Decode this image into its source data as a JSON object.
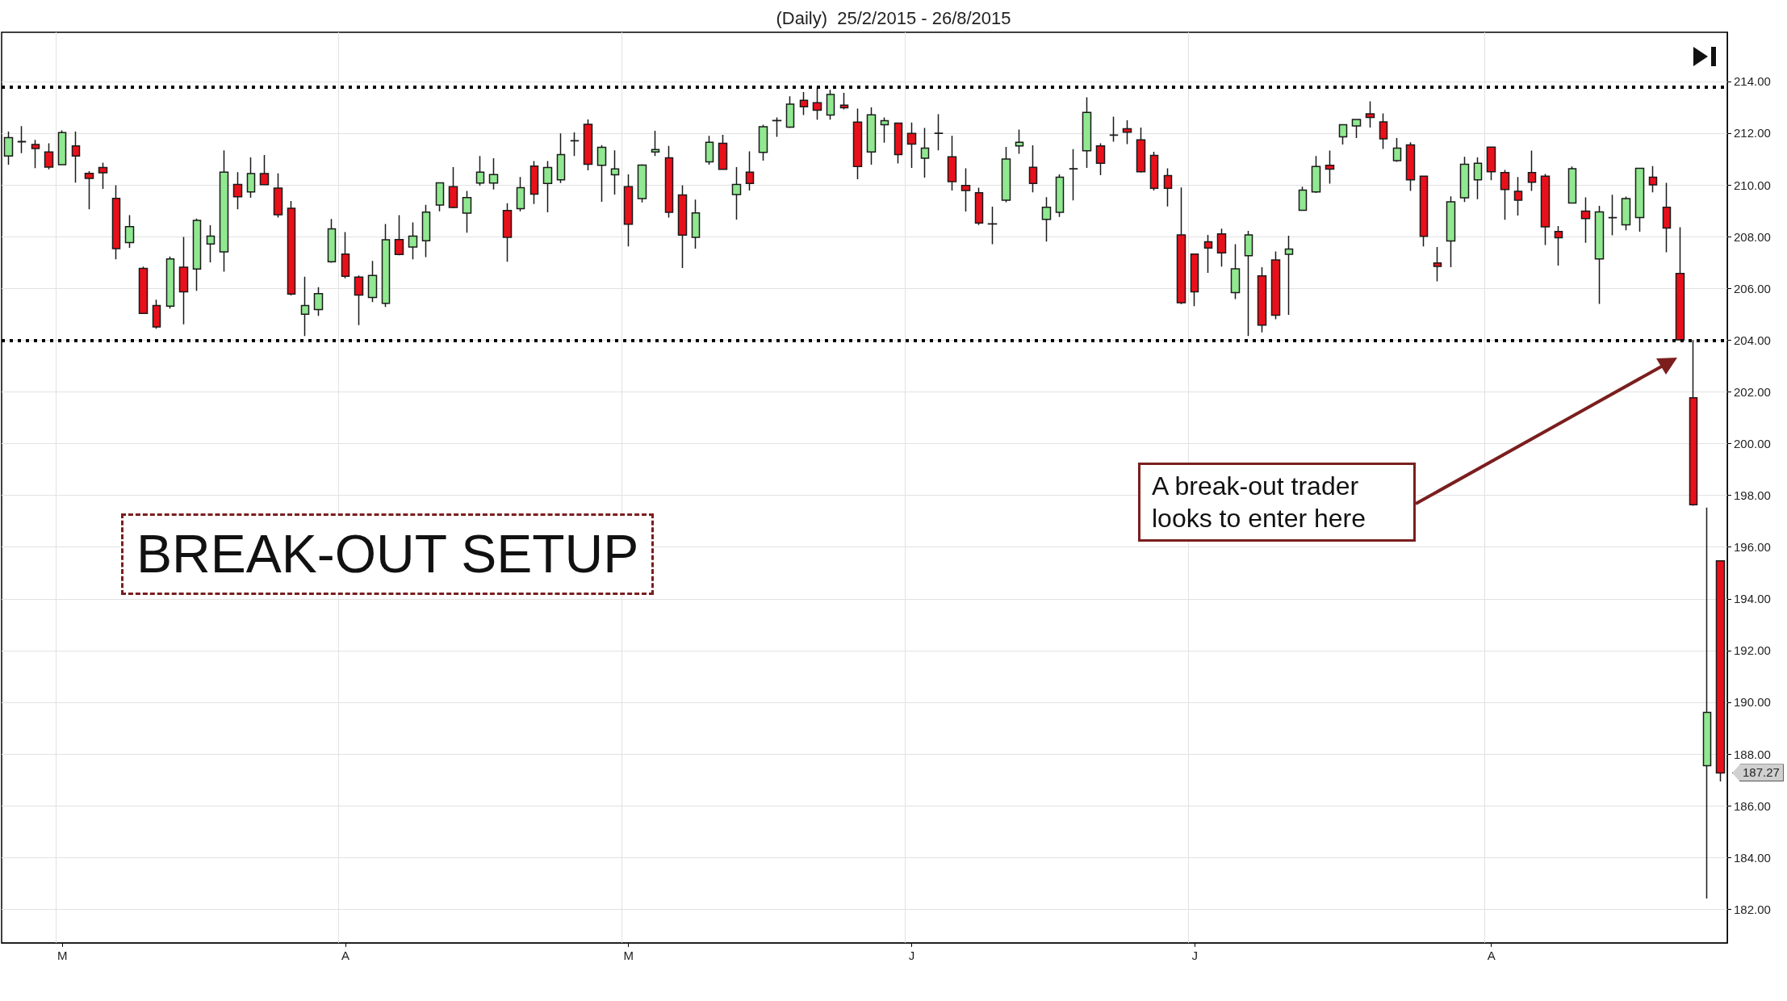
{
  "chart_data": {
    "type": "candlestick",
    "title": "(Daily)  25/2/2015 - 26/8/2015",
    "categories": [
      null,
      null,
      null,
      null,
      "M",
      null,
      null,
      null,
      null,
      null,
      null,
      null,
      null,
      null,
      null,
      null,
      null,
      null,
      null,
      null,
      null,
      null,
      null,
      null,
      null,
      "A",
      null,
      null,
      null,
      null,
      null,
      null,
      null,
      null,
      null,
      null,
      null,
      null,
      null,
      null,
      null,
      null,
      null,
      null,
      null,
      null,
      "M",
      null,
      null,
      null,
      null,
      null,
      null,
      null,
      null,
      null,
      null,
      null,
      null,
      null,
      null,
      null,
      null,
      null,
      null,
      null,
      null,
      "J",
      null,
      null,
      null,
      null,
      null,
      null,
      null,
      null,
      null,
      null,
      null,
      null,
      null,
      null,
      null,
      null,
      null,
      null,
      null,
      null,
      "J",
      null,
      null,
      null,
      null,
      null,
      null,
      null,
      null,
      null,
      null,
      null,
      null,
      null,
      null,
      null,
      null,
      null,
      null,
      null,
      null,
      null,
      "A",
      null,
      null,
      null,
      null,
      null,
      null,
      null,
      null,
      null,
      null,
      null,
      null,
      null,
      null,
      null,
      null,
      null
    ],
    "ohlc": [
      [
        211.12,
        212.06,
        210.78,
        211.83
      ],
      [
        211.66,
        212.27,
        211.23,
        211.68
      ],
      [
        211.56,
        211.74,
        210.65,
        211.41
      ],
      [
        211.27,
        211.61,
        210.6,
        210.69
      ],
      [
        210.78,
        212.11,
        210.78,
        212.02
      ],
      [
        211.51,
        212.06,
        210.09,
        211.12
      ],
      [
        210.45,
        210.53,
        209.06,
        210.25
      ],
      [
        210.67,
        210.86,
        209.85,
        210.47
      ],
      [
        209.48,
        209.99,
        207.12,
        207.54
      ],
      [
        207.77,
        208.83,
        207.57,
        208.39
      ],
      [
        206.77,
        206.84,
        205.03,
        205.03
      ],
      [
        205.34,
        205.56,
        204.44,
        204.51
      ],
      [
        205.31,
        207.23,
        205.22,
        207.14
      ],
      [
        206.82,
        207.99,
        204.61,
        205.87
      ],
      [
        206.75,
        208.7,
        205.91,
        208.63
      ],
      [
        207.72,
        208.44,
        207.01,
        208.02
      ],
      [
        207.41,
        211.34,
        206.65,
        210.49
      ],
      [
        210.02,
        210.49,
        209.06,
        209.54
      ],
      [
        209.73,
        211.06,
        209.5,
        210.44
      ],
      [
        210.44,
        211.16,
        210.01,
        210.01
      ],
      [
        209.88,
        210.45,
        208.74,
        208.85
      ],
      [
        209.1,
        209.38,
        205.73,
        205.78
      ],
      [
        205,
        206.45,
        204.16,
        205.34
      ],
      [
        205.18,
        206.05,
        204.94,
        205.8
      ],
      [
        207.03,
        208.68,
        206.99,
        208.3
      ],
      [
        207.33,
        208.18,
        206.39,
        206.47
      ],
      [
        206.44,
        206.5,
        204.58,
        205.74
      ],
      [
        205.65,
        207.06,
        205.47,
        206.5
      ],
      [
        205.42,
        208.49,
        205.28,
        207.88
      ],
      [
        207.89,
        208.83,
        207.28,
        207.31
      ],
      [
        207.6,
        208.55,
        207.12,
        208.02
      ],
      [
        207.84,
        209.23,
        207.21,
        208.95
      ],
      [
        209.22,
        210.08,
        208.98,
        210.08
      ],
      [
        209.93,
        210.69,
        209.1,
        209.13
      ],
      [
        208.91,
        209.77,
        208.15,
        209.51
      ],
      [
        210.07,
        211.12,
        209.97,
        210.49
      ],
      [
        210.07,
        211.03,
        209.82,
        210.4
      ],
      [
        209.01,
        209.29,
        207.03,
        207.97
      ],
      [
        209.08,
        210.31,
        208.98,
        209.89
      ],
      [
        210.73,
        210.92,
        209.26,
        209.64
      ],
      [
        210.06,
        210.92,
        208.94,
        210.67
      ],
      [
        210.2,
        211.99,
        210.07,
        211.17
      ],
      [
        211.7,
        212.03,
        211.12,
        211.71
      ],
      [
        212.34,
        212.53,
        210.56,
        210.8
      ],
      [
        210.76,
        211.54,
        209.35,
        211.45
      ],
      [
        210.39,
        211.34,
        209.63,
        210.62
      ],
      [
        209.93,
        210.41,
        207.62,
        208.48
      ],
      [
        209.47,
        210.8,
        209.32,
        210.77
      ],
      [
        211.27,
        212.09,
        211.12,
        211.37
      ],
      [
        211.05,
        211.51,
        208.74,
        208.94
      ],
      [
        209.61,
        209.99,
        206.79,
        208.06
      ],
      [
        207.97,
        209.43,
        207.54,
        208.92
      ],
      [
        210.89,
        211.9,
        210.78,
        211.65
      ],
      [
        211.61,
        211.94,
        210.58,
        210.6
      ],
      [
        209.63,
        210.69,
        208.66,
        210.02
      ],
      [
        210.49,
        211.3,
        209.78,
        210.06
      ],
      [
        211.26,
        212.33,
        210.94,
        212.25
      ],
      [
        212.48,
        212.61,
        211.86,
        212.49
      ],
      [
        212.23,
        213.43,
        212.2,
        213.12
      ],
      [
        213.27,
        213.59,
        212.7,
        213.02
      ],
      [
        213.18,
        213.76,
        212.52,
        212.89
      ],
      [
        212.7,
        213.68,
        212.52,
        213.5
      ],
      [
        213.08,
        213.56,
        212.92,
        212.98
      ],
      [
        212.43,
        212.95,
        210.22,
        210.71
      ],
      [
        211.27,
        213,
        210.78,
        212.71
      ],
      [
        212.33,
        212.61,
        211.63,
        212.48
      ],
      [
        212.39,
        212.39,
        210.83,
        211.17
      ],
      [
        211.99,
        212.41,
        210.66,
        211.58
      ],
      [
        211.03,
        212.2,
        210.28,
        211.42
      ],
      [
        212,
        212.73,
        211.34,
        211.99
      ],
      [
        211.09,
        211.9,
        209.78,
        210.13
      ],
      [
        209.98,
        210.64,
        208.97,
        209.78
      ],
      [
        209.7,
        209.89,
        208.45,
        208.53
      ],
      [
        208.5,
        209.16,
        207.71,
        208.49
      ],
      [
        209.41,
        211.47,
        209.33,
        211
      ],
      [
        211.51,
        212.14,
        211.2,
        211.65
      ],
      [
        210.68,
        211.53,
        209.71,
        210.06
      ],
      [
        208.67,
        209.53,
        207.81,
        209.14
      ],
      [
        208.94,
        210.41,
        208.76,
        210.3
      ],
      [
        210.63,
        211.38,
        209.4,
        210.62
      ],
      [
        211.32,
        213.39,
        210.66,
        212.8
      ],
      [
        211.51,
        211.61,
        210.38,
        210.84
      ],
      [
        211.93,
        212.64,
        211.67,
        211.92
      ],
      [
        212.17,
        212.5,
        211.58,
        212.04
      ],
      [
        211.74,
        212.22,
        210.48,
        210.51
      ],
      [
        211.14,
        211.28,
        209.78,
        209.87
      ],
      [
        210.36,
        210.64,
        209.17,
        209.87
      ],
      [
        208.07,
        209.9,
        205.39,
        205.45
      ],
      [
        207.33,
        207.33,
        205.31,
        205.87
      ],
      [
        207.8,
        208.07,
        206.6,
        207.56
      ],
      [
        208.11,
        208.31,
        206.84,
        207.37
      ],
      [
        205.84,
        207.71,
        205.59,
        206.76
      ],
      [
        207.26,
        208.22,
        204.16,
        208.07
      ],
      [
        206.48,
        206.82,
        204.3,
        204.58
      ],
      [
        207.1,
        207.43,
        204.81,
        204.96
      ],
      [
        207.32,
        208.04,
        204.98,
        207.52
      ],
      [
        209.02,
        209.93,
        209,
        209.8
      ],
      [
        209.73,
        211.12,
        209.69,
        210.71
      ],
      [
        210.76,
        211.33,
        210.05,
        210.61
      ],
      [
        211.86,
        212.33,
        211.56,
        212.33
      ],
      [
        212.28,
        212.53,
        211.81,
        212.53
      ],
      [
        212.75,
        213.23,
        212.22,
        212.61
      ],
      [
        212.44,
        212.76,
        211.39,
        211.78
      ],
      [
        210.94,
        211.81,
        210.89,
        211.42
      ],
      [
        211.55,
        211.65,
        209.77,
        210.2
      ],
      [
        210.34,
        210.34,
        207.62,
        208.01
      ],
      [
        206.98,
        207.6,
        206.27,
        206.85
      ],
      [
        207.83,
        209.56,
        206.82,
        209.35
      ],
      [
        209.5,
        211.09,
        209.34,
        210.8
      ],
      [
        210.2,
        211.06,
        209.45,
        210.84
      ],
      [
        211.46,
        211.46,
        210.18,
        210.51
      ],
      [
        210.48,
        210.58,
        208.65,
        209.82
      ],
      [
        209.75,
        210.31,
        208.82,
        209.41
      ],
      [
        210.48,
        211.33,
        209.77,
        210.1
      ],
      [
        210.34,
        210.42,
        207.68,
        208.38
      ],
      [
        208.2,
        208.41,
        206.88,
        207.96
      ],
      [
        209.3,
        210.71,
        209.3,
        210.63
      ],
      [
        208.99,
        209.52,
        207.76,
        208.7
      ],
      [
        207.14,
        209.19,
        205.4,
        208.96
      ],
      [
        208.74,
        209.62,
        208.05,
        208.73
      ],
      [
        208.46,
        209.55,
        208.25,
        209.47
      ],
      [
        208.74,
        210.64,
        208.19,
        210.64
      ],
      [
        210.3,
        210.73,
        209.71,
        210
      ],
      [
        209.14,
        210.08,
        207.4,
        208.33
      ],
      [
        206.58,
        208.36,
        203.98,
        204.01
      ],
      [
        201.77,
        204,
        197.6,
        197.64
      ],
      [
        187.55,
        197.53,
        182.42,
        189.61
      ],
      [
        195.47,
        195.47,
        186.94,
        187.27
      ]
    ],
    "ylim": [
      180.7,
      215.9
    ],
    "yticks": [
      {
        "value": 182,
        "label": "182.00"
      },
      {
        "value": 184,
        "label": "184.00"
      },
      {
        "value": 186,
        "label": "186.00"
      },
      {
        "value": 188,
        "label": "188.00"
      },
      {
        "value": 190,
        "label": "190.00"
      },
      {
        "value": 192,
        "label": "192.00"
      },
      {
        "value": 194,
        "label": "194.00"
      },
      {
        "value": 196,
        "label": "196.00"
      },
      {
        "value": 198,
        "label": "198.00"
      },
      {
        "value": 200,
        "label": "200.00"
      },
      {
        "value": 202,
        "label": "202.00"
      },
      {
        "value": 204,
        "label": "204.00"
      },
      {
        "value": 206,
        "label": "206.00"
      },
      {
        "value": 208,
        "label": "208.00"
      },
      {
        "value": 210,
        "label": "210.00"
      },
      {
        "value": 212,
        "label": "212.00"
      },
      {
        "value": 214,
        "label": "214.00"
      }
    ],
    "grid": true,
    "ref_lines": [
      {
        "axis": "y",
        "value": 213.8,
        "label": null,
        "color": "#000000",
        "line_style": "dotted"
      },
      {
        "axis": "y",
        "value": 204,
        "label": null,
        "color": "#000000",
        "line_style": "dotted"
      }
    ],
    "annotations": [
      "BREAK-OUT SETUP",
      "A break-out trader looks to enter here",
      "187.27"
    ]
  }
}
